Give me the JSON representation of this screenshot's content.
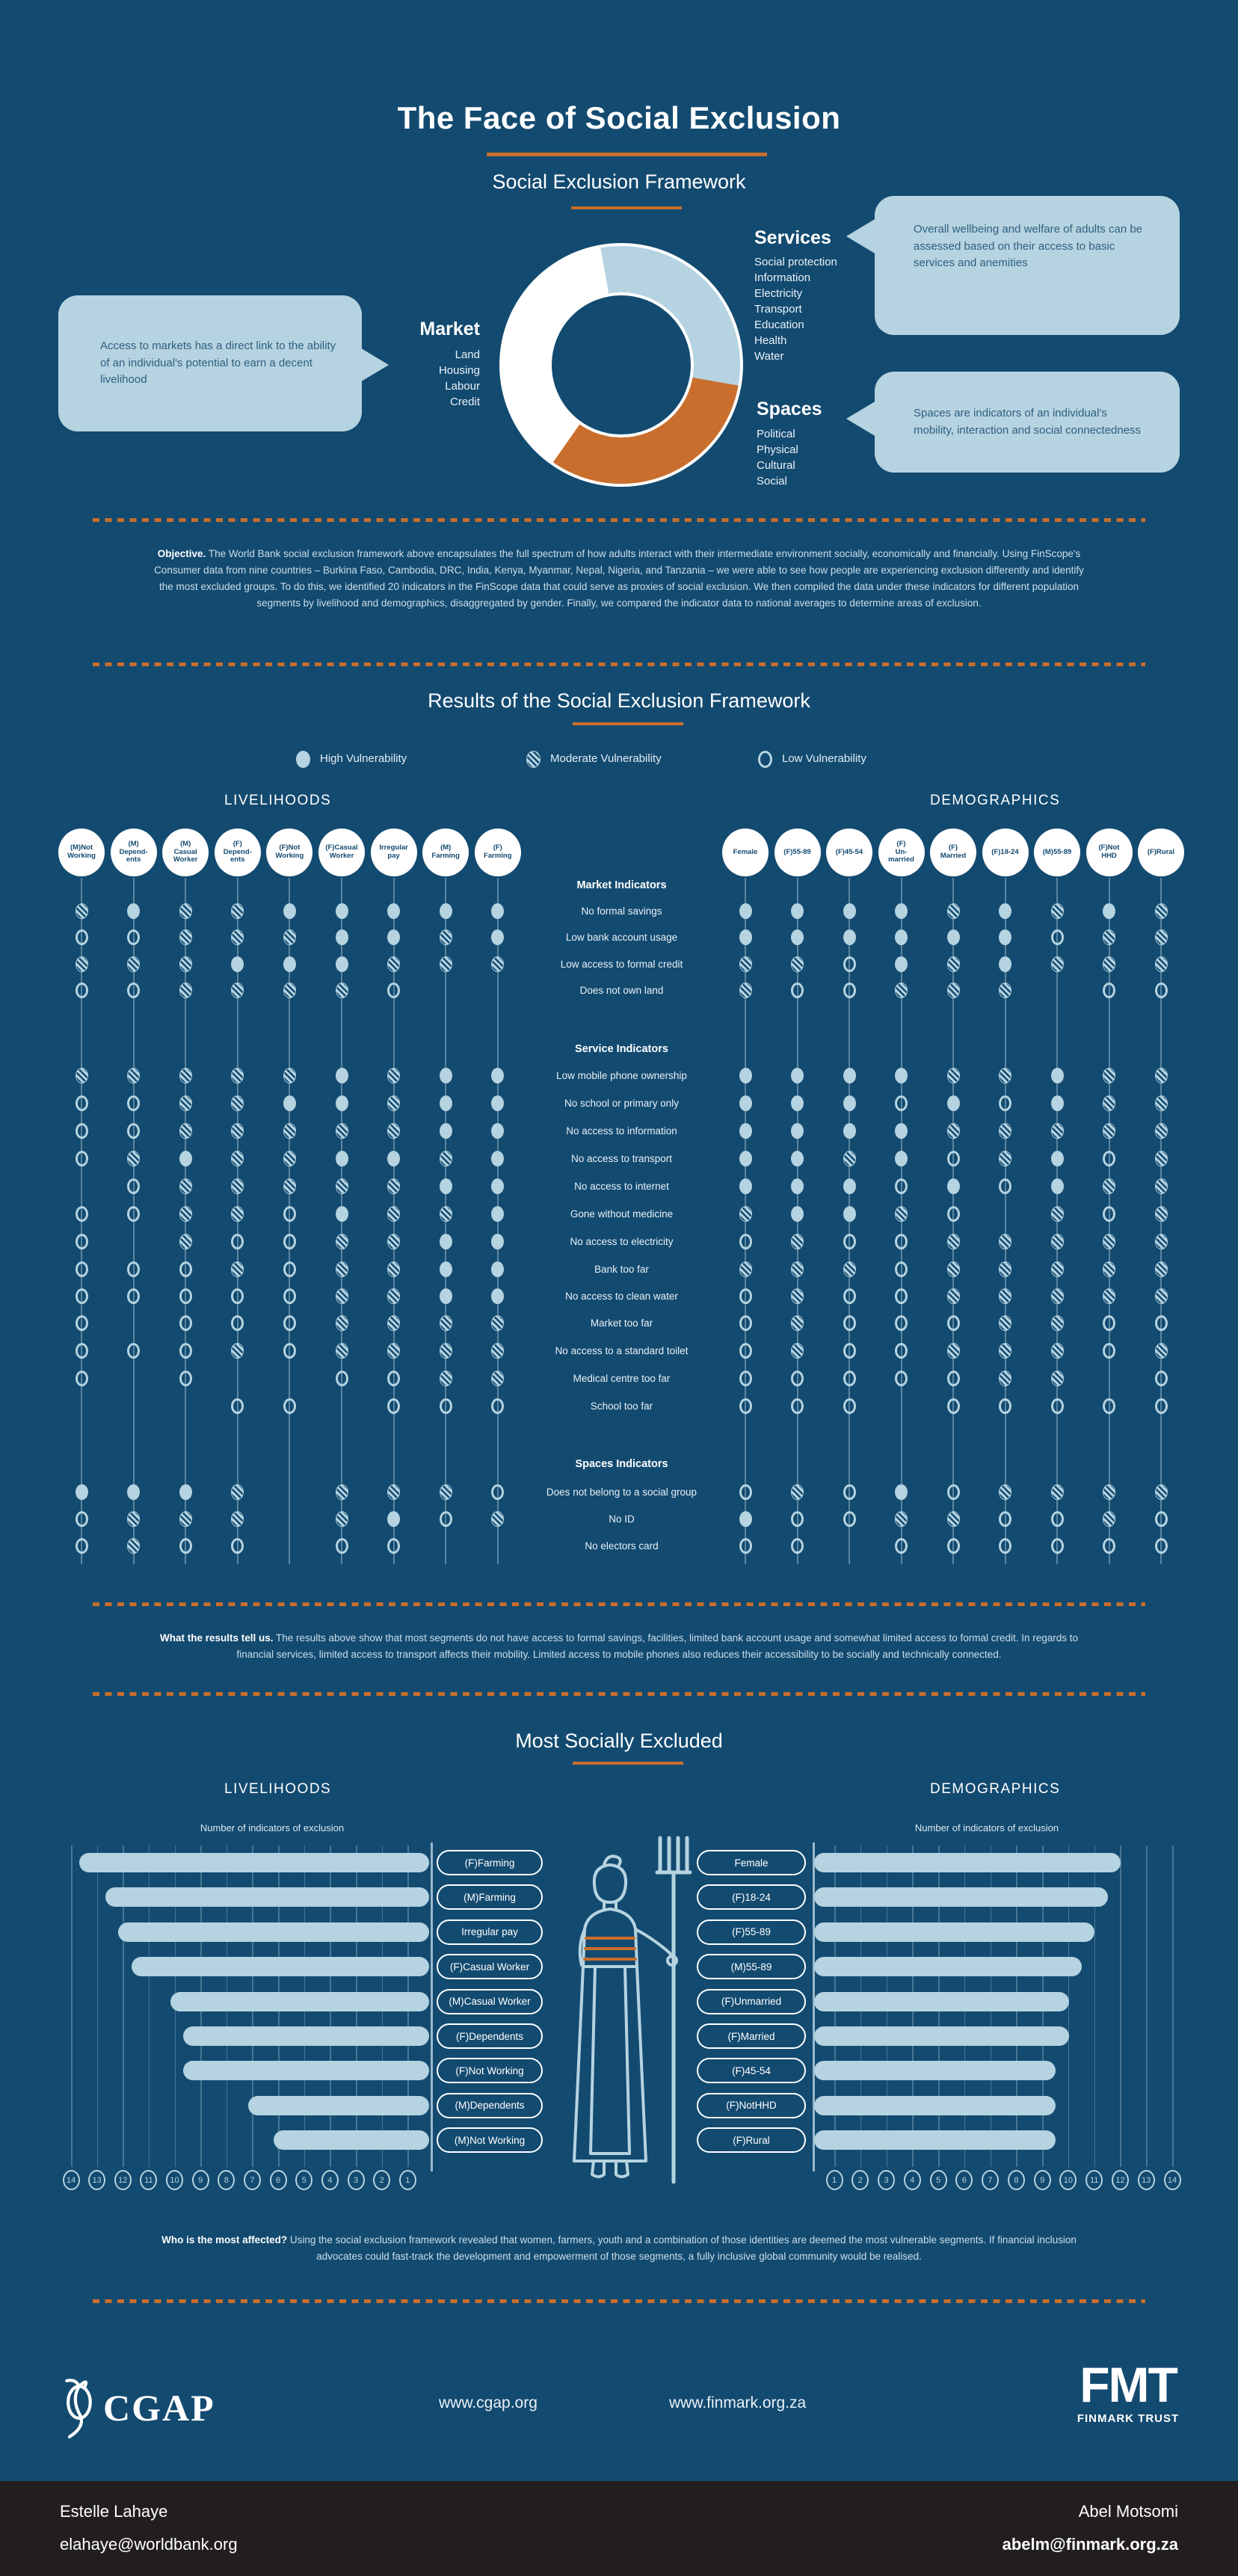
{
  "colors": {
    "background": "#134A70",
    "light_blue": "#B5D3E0",
    "orange": "#C96E2D",
    "white": "#FFFFFF",
    "footer_bar": "#221E1F"
  },
  "header": {
    "title": "The Face of Social Exclusion",
    "framework_title": "Social Exclusion Framework"
  },
  "framework": {
    "market": {
      "label": "Market",
      "items": [
        "Land",
        "Housing",
        "Labour",
        "Credit"
      ],
      "bubble": "Access to markets has a direct link to the ability of an individual's potential to earn a decent livelihood"
    },
    "services": {
      "label": "Services",
      "items": [
        "Social protection",
        "Information",
        "Electricity",
        "Transport",
        "Education",
        "Health",
        "Water"
      ],
      "bubble": "Overall wellbeing and welfare of adults can be assessed based on their access to basic services and anemities"
    },
    "spaces": {
      "label": "Spaces",
      "items": [
        "Political",
        "Physical",
        "Cultural",
        "Social"
      ],
      "bubble": "Spaces are indicators of an individual's mobility, interaction and social connectedness"
    },
    "donut": {
      "start_angle": -10,
      "segments": [
        {
          "label": "Services",
          "color": "#B5D3E0",
          "sweep": 110
        },
        {
          "label": "Spaces",
          "color": "#C96E2D",
          "sweep": 115
        },
        {
          "label": "Market",
          "color": "#FFFFFF",
          "sweep": 135
        }
      ]
    }
  },
  "objective": {
    "lead": "Objective.",
    "text": " The World Bank social exclusion framework above encapsulates the full spectrum of how adults interact with their intermediate environment socially, economically and financially. Using FinScope's Consumer data from nine countries – Burkina Faso, Cambodia, DRC, India, Kenya, Myanmar, Nepal, Nigeria, and Tanzania – we were able to see how people are experiencing exclusion differently and identify the most excluded groups. To do this, we identified 20 indicators in the FinScope data that could serve as proxies of social exclusion. We then compiled the data under these indicators for different population segments by livelihood and demographics, disaggregated by gender. Finally, we compared the indicator data to national averages to determine areas of exclusion."
  },
  "results": {
    "title": "Results of the Social Exclusion Framework",
    "legend": [
      {
        "style": "H",
        "label": "High Vulnerability"
      },
      {
        "style": "M",
        "label": "Moderate Vulnerability"
      },
      {
        "style": "L",
        "label": "Low Vulnerability"
      }
    ],
    "livelihoods_label": "LIVELIHOODS",
    "demographics_label": "DEMOGRAPHICS",
    "livelihood_columns": [
      [
        "(M)Not",
        "Working"
      ],
      [
        "(M)",
        "Depend-",
        "ents"
      ],
      [
        "(M)",
        "Casual",
        "Worker"
      ],
      [
        "(F)",
        "Depend-",
        "ents"
      ],
      [
        "(F)Not",
        "Working"
      ],
      [
        "(F)Casual",
        "Worker"
      ],
      [
        "Irregular",
        "pay"
      ],
      [
        "(M)",
        "Farming"
      ],
      [
        "(F)",
        "Farming"
      ]
    ],
    "demographic_columns": [
      [
        "Female"
      ],
      [
        "(F)55-89"
      ],
      [
        "(F)45-54"
      ],
      [
        "(F)",
        "Un-",
        "married"
      ],
      [
        "(F)",
        "Married"
      ],
      [
        "(F)18-24"
      ],
      [
        "(M)55-89"
      ],
      [
        "(F)Not",
        "HHD"
      ],
      [
        "(F)Rural"
      ]
    ],
    "groups": [
      {
        "title": "Market Indicators",
        "rows": [
          {
            "label": "No formal savings",
            "liv": "MHMMHHHHH",
            "dem": "HHHHMHMHM"
          },
          {
            "label": "Low bank account usage",
            "liv": "LLMMMHHMH",
            "dem": "HHHHHHLMM"
          },
          {
            "label": "Low access to formal credit",
            "liv": "MMMHHHMMM",
            "dem": "MMLHMHMMM"
          },
          {
            "label": "Does not own land",
            "liv": "LLMMMML--",
            "dem": "MLLMMM-LL"
          }
        ]
      },
      {
        "title": "Service Indicators",
        "rows": [
          {
            "label": "Low mobile phone ownership",
            "liv": "MMMMMHMHH",
            "dem": "HHHHMMHMM"
          },
          {
            "label": "No school or primary only",
            "liv": "LLMMHHMHH",
            "dem": "HHHLHLHMM"
          },
          {
            "label": "No access to information",
            "liv": "LLMMMMMHH",
            "dem": "HHHHMMMMM"
          },
          {
            "label": "No access to transport",
            "liv": "LMHMMHHMH",
            "dem": "HHMHLMHLM"
          },
          {
            "label": "No access to internet",
            "liv": "-LMMMMMHH",
            "dem": "HHHLHLHMM"
          },
          {
            "label": "Gone without medicine",
            "liv": "LLMMLHMMH",
            "dem": "MHHML-MLM"
          },
          {
            "label": "No access to electricity",
            "liv": "L-MLLMMHH",
            "dem": "LMLLMMMMM"
          },
          {
            "label": "Bank too far",
            "liv": "LLLMLMMHH",
            "dem": "MMMLMMMMM"
          },
          {
            "label": "No access to clean water",
            "liv": "LLLLLMMHH",
            "dem": "LMLLMMMMM"
          },
          {
            "label": "Market too far",
            "liv": "L-LLLMMMM",
            "dem": "LMLLLMMLL"
          },
          {
            "label": "No access to a standard toilet",
            "liv": "LLLMLMMMM",
            "dem": "LMLLMMMLM"
          },
          {
            "label": "Medical centre too far",
            "liv": "L-L--LLMM",
            "dem": "LLLLLMM-L"
          },
          {
            "label": "School too far",
            "liv": "---LL-LLL",
            "dem": "LLL-LLLLL"
          }
        ]
      },
      {
        "title": "Spaces Indicators",
        "rows": [
          {
            "label": "Does not belong to a social group",
            "liv": "HHHM-MMML",
            "dem": "LMLHLMMMM"
          },
          {
            "label": "No ID",
            "liv": "LMMM-MHLM",
            "dem": "HLLMMLLML"
          },
          {
            "label": "No electors card",
            "liv": "LMLL-LL--",
            "dem": "LL-LLLLLL"
          }
        ]
      }
    ]
  },
  "results_note": {
    "lead": "What the results tell us.",
    "text": " The results above show that most segments do not have access to formal savings, facilities, limited bank account usage and somewhat limited access to formal credit. In regards to financial services, limited access to transport affects their mobility. Limited access to mobile phones also reduces their accessibility to be socially and technically connected."
  },
  "excluded": {
    "title": "Most Socially Excluded",
    "livelihoods_label": "LIVELIHOODS",
    "demographics_label": "DEMOGRAPHICS",
    "axis_title": "Number of indicators of exclusion",
    "livelihoods": {
      "categories": [
        "(F)Farming",
        "(M)Farming",
        "Irregular pay",
        "(F)Casual Worker",
        "(M)Casual Worker",
        "(F)Dependents",
        "(F)Not Working",
        "(M)Dependents",
        "(M)Not Working"
      ],
      "values": [
        13.5,
        12.5,
        12,
        11.5,
        10,
        9.5,
        9.5,
        7,
        6
      ],
      "ticks": [
        14,
        13,
        12,
        11,
        10,
        9,
        8,
        7,
        6,
        5,
        4,
        3,
        2,
        1
      ]
    },
    "demographics": {
      "categories": [
        "Female",
        "(F)18-24",
        "(F)55-89",
        "(M)55-89",
        "(F)Unmarried",
        "(F)Married",
        "(F)45-54",
        "(F)NotHHD",
        "(F)Rural"
      ],
      "values": [
        12,
        11.5,
        11,
        10.5,
        10,
        10,
        9.5,
        9.5,
        9.5
      ],
      "ticks": [
        1,
        2,
        3,
        4,
        5,
        6,
        7,
        8,
        9,
        10,
        11,
        12,
        13,
        14
      ]
    }
  },
  "affected": {
    "lead": "Who is the most affected?",
    "text": " Using the social exclusion framework revealed that women, farmers, youth and a combination of those identities are deemed the most vulnerable segments. If financial inclusion advocates could fast-track the development and empowerment of those segments, a fully inclusive global community would be realised."
  },
  "footer": {
    "cgap_label": "CGAP",
    "url_cgap": "www.cgap.org",
    "url_finmark": "www.finmark.org.za",
    "fmt_label": "FMT",
    "fmt_sub": "FINMARK TRUST"
  },
  "contacts": {
    "left_name": "Estelle Lahaye",
    "left_email": "elahaye@worldbank.org",
    "right_name": "Abel Motsomi",
    "right_email": "abelm@finmark.org.za"
  },
  "chart_data": [
    {
      "type": "pie",
      "title": "Social Exclusion Framework donut",
      "slices": [
        {
          "label": "Services",
          "color": "#B5D3E0",
          "sweep_deg": 110
        },
        {
          "label": "Spaces",
          "color": "#C96E2D",
          "sweep_deg": 115
        },
        {
          "label": "Market",
          "color": "#FFFFFF",
          "sweep_deg": 135
        }
      ],
      "legend_position": "around"
    },
    {
      "type": "bar",
      "title": "Most Socially Excluded – Livelihoods",
      "xlabel": "Number of indicators of exclusion",
      "categories": [
        "(F)Farming",
        "(M)Farming",
        "Irregular pay",
        "(F)Casual Worker",
        "(M)Casual Worker",
        "(F)Dependents",
        "(F)Not Working",
        "(M)Dependents",
        "(M)Not Working"
      ],
      "values": [
        13.5,
        12.5,
        12,
        11.5,
        10,
        9.5,
        9.5,
        7,
        6
      ],
      "xlim": [
        0,
        14
      ],
      "orientation": "horizontal-reversed",
      "grid": true
    },
    {
      "type": "bar",
      "title": "Most Socially Excluded – Demographics",
      "xlabel": "Number of indicators of exclusion",
      "categories": [
        "Female",
        "(F)18-24",
        "(F)55-89",
        "(M)55-89",
        "(F)Unmarried",
        "(F)Married",
        "(F)45-54",
        "(F)NotHHD",
        "(F)Rural"
      ],
      "values": [
        12,
        11.5,
        11,
        10.5,
        10,
        10,
        9.5,
        9.5,
        9.5
      ],
      "xlim": [
        0,
        14
      ],
      "orientation": "horizontal",
      "grid": true
    }
  ]
}
